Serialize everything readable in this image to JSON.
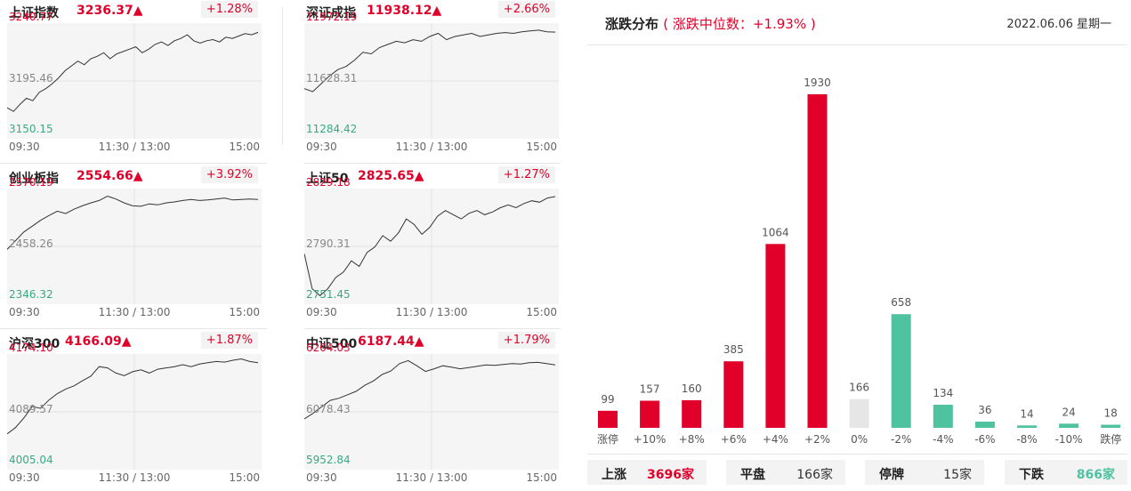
{
  "charts": [
    {
      "name": "上证指数",
      "value": "3236.37▲",
      "change": "+1.28%",
      "high": "3240.77",
      "mid": "3195.46",
      "low": "3150.15",
      "series": [
        3173,
        3170,
        3176,
        3181,
        3179,
        3186,
        3189,
        3193,
        3198,
        3204,
        3208,
        3212,
        3209,
        3214,
        3216,
        3219,
        3214,
        3218,
        3220,
        3222,
        3224,
        3219,
        3222,
        3226,
        3228,
        3225,
        3229,
        3231,
        3234,
        3229,
        3227,
        3229,
        3230,
        3228,
        3232,
        3231,
        3233,
        3235,
        3234,
        3236
      ]
    },
    {
      "name": "深证成指",
      "value": "11938.12▲",
      "change": "+2.66%",
      "high": "11972.19",
      "mid": "11628.31",
      "low": "11284.42",
      "series": [
        11580,
        11560,
        11610,
        11660,
        11700,
        11720,
        11760,
        11810,
        11800,
        11840,
        11860,
        11880,
        11870,
        11890,
        11880,
        11910,
        11930,
        11890,
        11910,
        11920,
        11930,
        11910,
        11920,
        11930,
        11935,
        11930,
        11940,
        11945,
        11950,
        11940,
        11938
      ]
    },
    {
      "name": "创业板指",
      "value": "2554.66▲",
      "change": "+3.92%",
      "high": "2570.19",
      "mid": "2458.26",
      "low": "2346.32",
      "series": [
        2452,
        2470,
        2488,
        2500,
        2512,
        2522,
        2531,
        2526,
        2535,
        2542,
        2548,
        2553,
        2562,
        2556,
        2548,
        2542,
        2541,
        2546,
        2544,
        2548,
        2550,
        2553,
        2555,
        2553,
        2554,
        2556,
        2558,
        2554,
        2555,
        2556,
        2555
      ]
    },
    {
      "name": "上证50",
      "value": "2825.65▲",
      "change": "+1.27%",
      "high": "2829.18",
      "mid": "2790.31",
      "low": "2751.45",
      "series": [
        2785,
        2760,
        2755,
        2760,
        2768,
        2772,
        2780,
        2776,
        2786,
        2790,
        2798,
        2794,
        2800,
        2810,
        2806,
        2799,
        2804,
        2812,
        2816,
        2813,
        2810,
        2814,
        2816,
        2813,
        2815,
        2818,
        2820,
        2818,
        2821,
        2823,
        2822,
        2825,
        2826
      ]
    },
    {
      "name": "沪深300",
      "value": "4166.09▲",
      "change": "+1.87%",
      "high": "4174.10",
      "mid": "4089.57",
      "low": "4005.04",
      "series": [
        4055,
        4065,
        4080,
        4098,
        4095,
        4108,
        4118,
        4125,
        4130,
        4138,
        4145,
        4160,
        4158,
        4150,
        4146,
        4152,
        4155,
        4150,
        4156,
        4158,
        4160,
        4163,
        4160,
        4164,
        4166,
        4168,
        4167,
        4170,
        4172,
        4168,
        4166
      ]
    },
    {
      "name": "中证500",
      "value": "6187.44▲",
      "change": "+1.79%",
      "high": "6204.03",
      "mid": "6078.43",
      "low": "5952.84",
      "series": [
        6062,
        6075,
        6090,
        6105,
        6110,
        6118,
        6126,
        6140,
        6150,
        6165,
        6173,
        6190,
        6197,
        6185,
        6172,
        6178,
        6185,
        6182,
        6178,
        6181,
        6184,
        6187,
        6186,
        6188,
        6190,
        6189,
        6192,
        6193,
        6190,
        6187
      ]
    }
  ],
  "x_labels": [
    "09:30",
    "11:30 / 13:00",
    "15:00"
  ],
  "distribution": {
    "title": "涨跌分布",
    "subtitle": "( 涨跌中位数：+1.93% )",
    "date": "2022.06.06 星期一",
    "colors": {
      "up": "#e0002a",
      "flat": "#e6e6e6",
      "down": "#4fc2a0"
    }
  },
  "chart_data": {
    "type": "bar",
    "categories": [
      "涨停",
      "+10%",
      "+8%",
      "+6%",
      "+4%",
      "+2%",
      "0%",
      "-2%",
      "-4%",
      "-6%",
      "-8%",
      "-10%",
      "跌停"
    ],
    "values": [
      99,
      157,
      160,
      385,
      1064,
      1930,
      166,
      658,
      134,
      36,
      14,
      24,
      18
    ],
    "kinds": [
      "up",
      "up",
      "up",
      "up",
      "up",
      "up",
      "flat",
      "down",
      "down",
      "down",
      "down",
      "down",
      "down"
    ]
  },
  "summary": [
    {
      "label": "上涨",
      "value": "3696家",
      "color": "#e0002a"
    },
    {
      "label": "平盘",
      "value": "166家",
      "color": "#333333"
    },
    {
      "label": "停牌",
      "value": "15家",
      "color": "#333333"
    },
    {
      "label": "下跌",
      "value": "866家",
      "color": "#4fc2a0"
    }
  ]
}
